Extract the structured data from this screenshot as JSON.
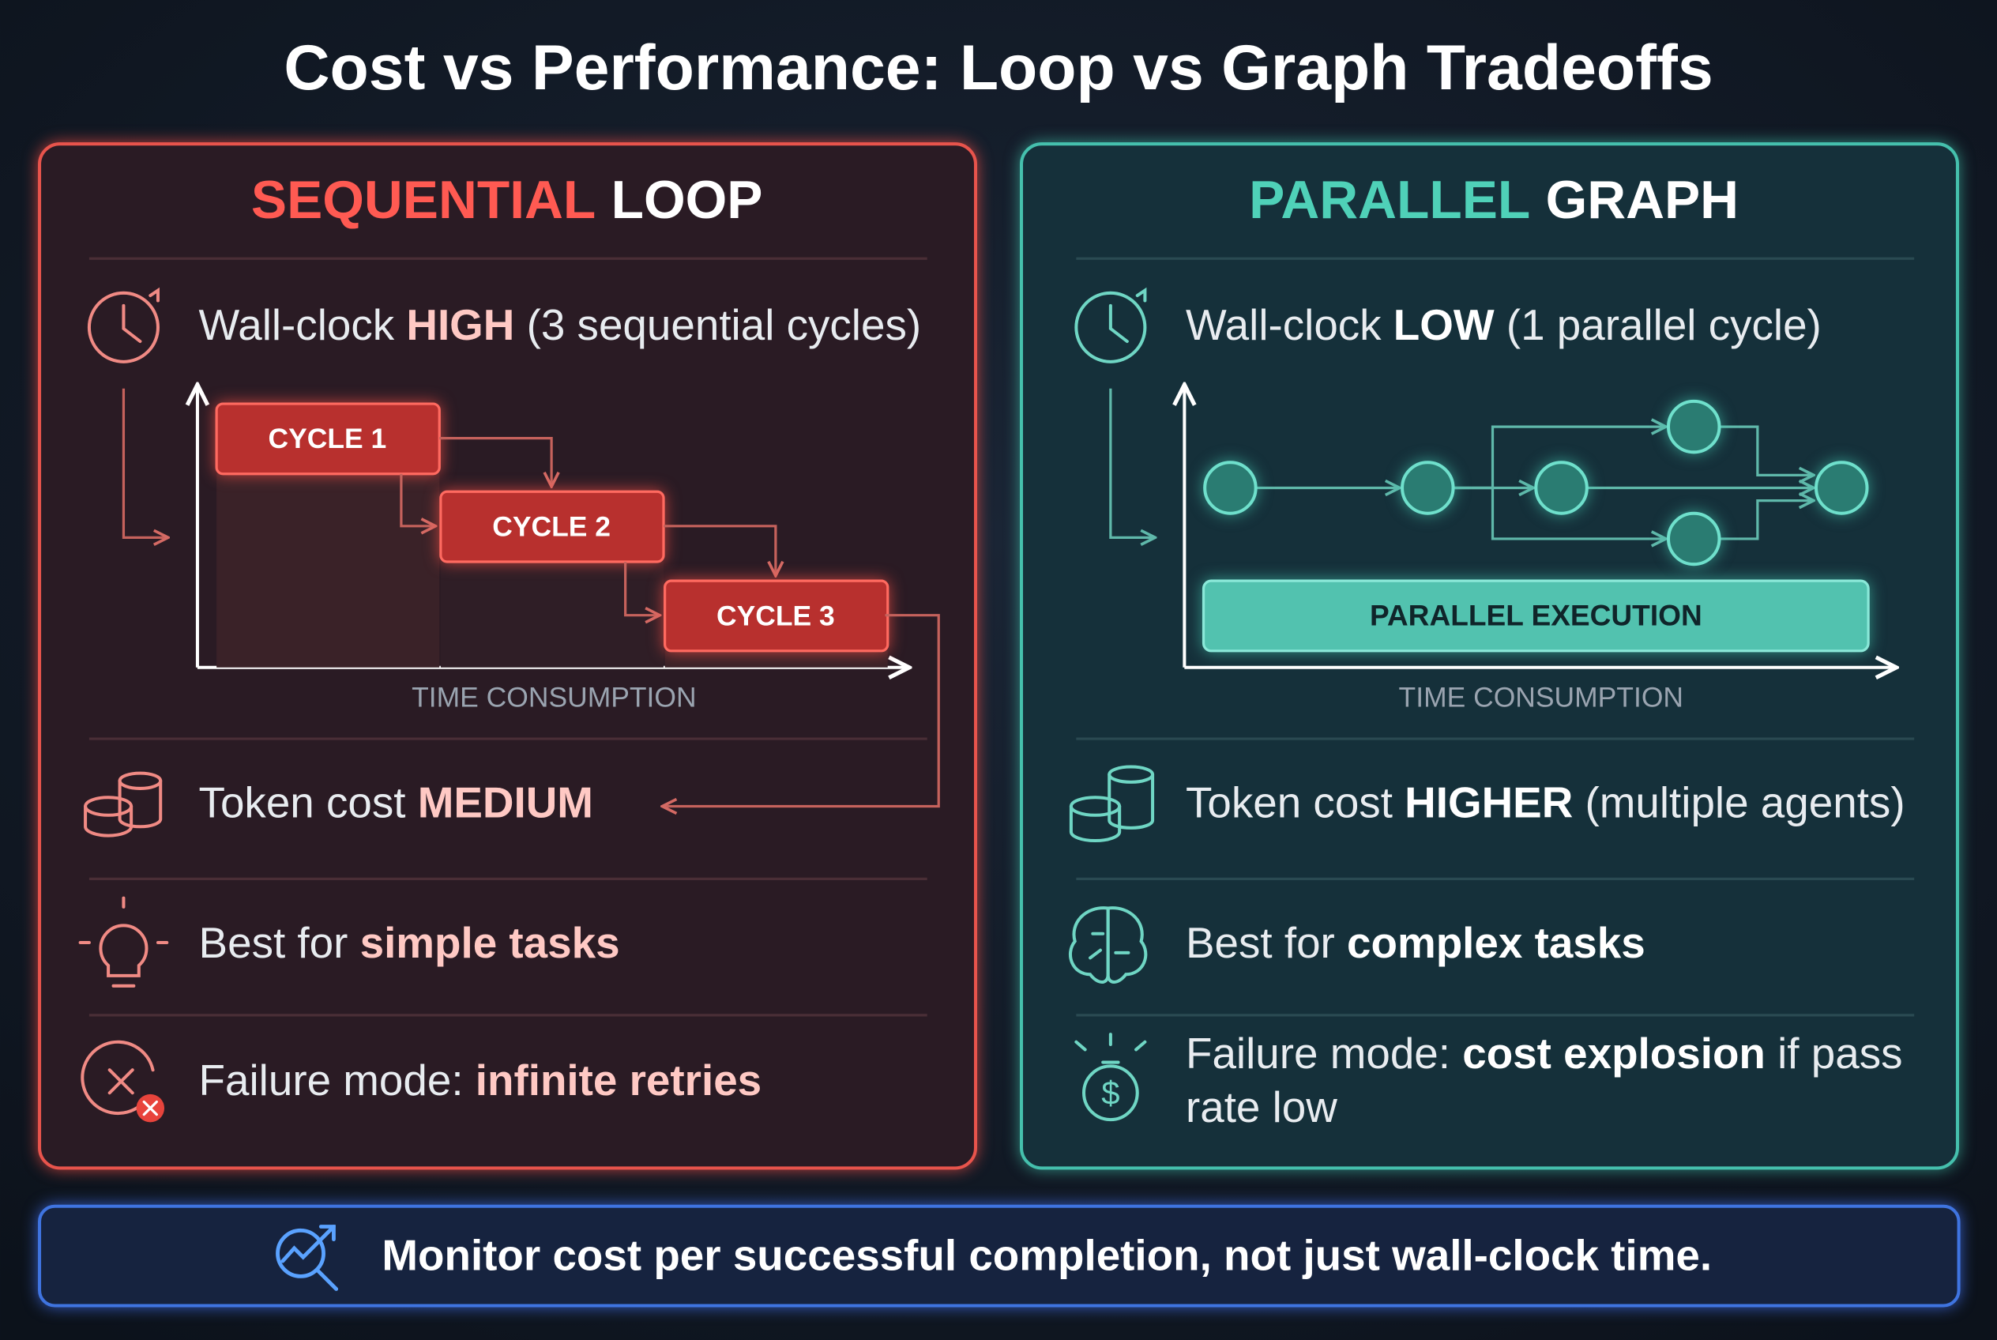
{
  "title": "Cost vs Performance: Loop vs Graph Tradeoffs",
  "panels": [
    {
      "heading": [
        "SEQUENTIAL",
        "LOOP"
      ],
      "rows": [
        {
          "lines": [
            [
              "Wall-clock ",
              "HIGH",
              " (3 sequential cycles)"
            ]
          ]
        },
        {
          "lines": [
            [
              "Token cost ",
              "MEDIUM"
            ]
          ]
        },
        {
          "lines": [
            [
              "Best for ",
              "simple tasks"
            ]
          ]
        },
        {
          "lines": [
            [
              "Failure mode: ",
              "infinite retries"
            ]
          ]
        }
      ],
      "diagram": {
        "blocks": [
          "CYCLE 1",
          "CYCLE 2",
          "CYCLE 3"
        ],
        "axis_label": "TIME CONSUMPTION"
      }
    },
    {
      "heading": [
        "PARALLEL",
        "GRAPH"
      ],
      "rows": [
        {
          "lines": [
            [
              "Wall-clock ",
              "LOW",
              " (1 parallel cycle)"
            ]
          ]
        },
        {
          "lines": [
            [
              "Token cost ",
              "HIGHER",
              " (multiple agents)"
            ]
          ]
        },
        {
          "lines": [
            [
              "Best for ",
              "complex tasks"
            ]
          ]
        },
        {
          "lines": [
            [
              "Failure mode: ",
              "cost explosion",
              " if pass"
            ],
            [
              "rate low"
            ]
          ]
        }
      ],
      "diagram": {
        "bar_label": "PARALLEL EXECUTION",
        "axis_label": "TIME CONSUMPTION"
      }
    }
  ],
  "footer": "Monitor cost per successful completion, not just wall-clock time."
}
